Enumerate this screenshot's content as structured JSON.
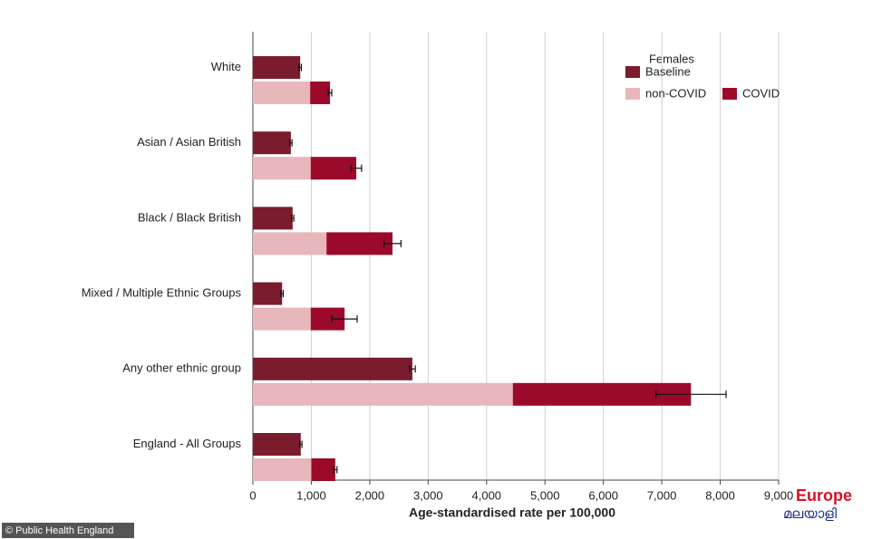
{
  "chart_data": {
    "type": "bar",
    "orientation": "horizontal",
    "categories": [
      "White",
      "Asian / Asian British",
      "Black / Black British",
      "Mixed / Multiple Ethnic Groups",
      "Any other ethnic group",
      "England - All Groups"
    ],
    "legend_title": "Females",
    "series": [
      {
        "name": "Baseline",
        "color": "#7b1c2e",
        "values": [
          810,
          650,
          680,
          500,
          2730,
          820
        ],
        "errors": [
          20,
          20,
          20,
          20,
          50,
          20
        ]
      },
      {
        "name": "non-COVID",
        "color": "#e8b7bb",
        "values": [
          980,
          990,
          1260,
          990,
          4450,
          1000
        ]
      },
      {
        "name": "COVID",
        "color": "#9b0a2a",
        "values": [
          340,
          780,
          1130,
          580,
          3050,
          410
        ],
        "errors": [
          30,
          90,
          145,
          215,
          600,
          30
        ]
      }
    ],
    "xlabel": "Age-standardised rate per 100,000",
    "xlim": [
      0,
      9000
    ],
    "xticks": [
      0,
      {
        "value": 1000,
        "label": "1,000"
      },
      {
        "value": 2000,
        "label": "2,000"
      },
      {
        "value": 3000,
        "label": "3,000"
      },
      {
        "value": 4000,
        "label": "4,000"
      },
      {
        "value": 5000,
        "label": "5,000"
      },
      {
        "value": 6000,
        "label": "6,000"
      },
      {
        "value": 7000,
        "label": "7,000"
      },
      {
        "value": 8000,
        "label": "8,000"
      },
      {
        "value": 9000,
        "label": "9,000"
      }
    ],
    "grid": true
  },
  "source": "© Public Health England",
  "watermark": [
    "Europe",
    "മലയാളി"
  ]
}
